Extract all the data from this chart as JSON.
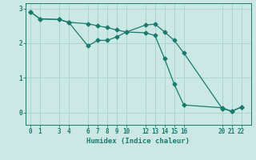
{
  "xlabel": "Humidex (Indice chaleur)",
  "ylabel": "",
  "bg_color": "#cce8e4",
  "line_color": "#1a7a6e",
  "grid_color": "#aad4ce",
  "line1_x": [
    0,
    1,
    3,
    4,
    6,
    7,
    8,
    9,
    10,
    12,
    13,
    14,
    15,
    16,
    20,
    21,
    22
  ],
  "line1_y": [
    2.9,
    2.7,
    2.68,
    2.6,
    1.92,
    2.08,
    2.08,
    2.18,
    2.32,
    2.52,
    2.55,
    2.32,
    2.08,
    1.72,
    0.12,
    0.04,
    0.16
  ],
  "line2_x": [
    0,
    1,
    3,
    4,
    6,
    7,
    8,
    9,
    10,
    12,
    13,
    14,
    15,
    16,
    20,
    21,
    22
  ],
  "line2_y": [
    2.9,
    2.7,
    2.68,
    2.6,
    2.56,
    2.5,
    2.45,
    2.38,
    2.32,
    2.3,
    2.22,
    1.55,
    0.82,
    0.22,
    0.14,
    0.04,
    0.16
  ],
  "xticks": [
    0,
    1,
    3,
    4,
    6,
    7,
    8,
    9,
    10,
    12,
    13,
    14,
    15,
    16,
    20,
    21,
    22
  ],
  "yticks": [
    0,
    1,
    2,
    3
  ],
  "xlim": [
    -0.5,
    23.0
  ],
  "ylim": [
    -0.35,
    3.15
  ]
}
